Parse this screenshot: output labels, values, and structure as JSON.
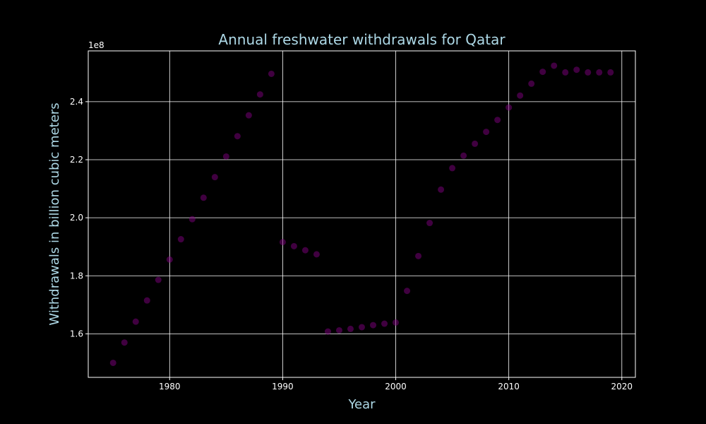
{
  "chart_data": {
    "type": "scatter",
    "title": "Annual freshwater withdrawals for Qatar",
    "xlabel": "Year",
    "ylabel": "Withdrawals in billion cubic meters",
    "y_offset_label": "1e8",
    "xlim": [
      1972.8,
      2021.2
    ],
    "ylim": [
      145000000,
      257500000
    ],
    "x_ticks": [
      1980,
      1990,
      2000,
      2010,
      2020
    ],
    "x_tick_labels": [
      "1980",
      "1990",
      "2000",
      "2010",
      "2020"
    ],
    "y_ticks": [
      160000000,
      180000000,
      200000000,
      220000000,
      240000000
    ],
    "y_tick_labels": [
      "1.6",
      "1.8",
      "2.0",
      "2.2",
      "2.4"
    ],
    "grid": true,
    "colors": {
      "background": "#000000",
      "text": "#add8e6",
      "ticks": "#ffffff",
      "grid": "#ffffff",
      "marker": "#800080"
    },
    "series": [
      {
        "x": [
          1975,
          1976,
          1977,
          1978,
          1979,
          1980,
          1981,
          1982,
          1983,
          1984,
          1985,
          1986,
          1987,
          1988,
          1989,
          1990,
          1991,
          1992,
          1993,
          1994,
          1995,
          1996,
          1997,
          1998,
          1999,
          2000,
          2001,
          2002,
          2003,
          2004,
          2005,
          2006,
          2007,
          2008,
          2009,
          2010,
          2011,
          2012,
          2013,
          2014,
          2015,
          2016,
          2017,
          2018,
          2019
        ],
        "y": [
          150000000,
          157000000,
          164200000,
          171500000,
          178600000,
          185600000,
          192600000,
          199500000,
          206900000,
          214000000,
          221100000,
          228100000,
          235300000,
          242500000,
          249600000,
          191600000,
          190200000,
          188800000,
          187400000,
          160800000,
          161200000,
          161700000,
          162300000,
          163000000,
          163500000,
          163900000,
          174800000,
          186800000,
          198200000,
          209700000,
          217100000,
          221400000,
          225500000,
          229600000,
          233700000,
          238000000,
          242100000,
          246200000,
          250300000,
          252400000,
          250100000,
          251000000,
          250100000,
          250100000,
          250100000
        ]
      }
    ]
  }
}
